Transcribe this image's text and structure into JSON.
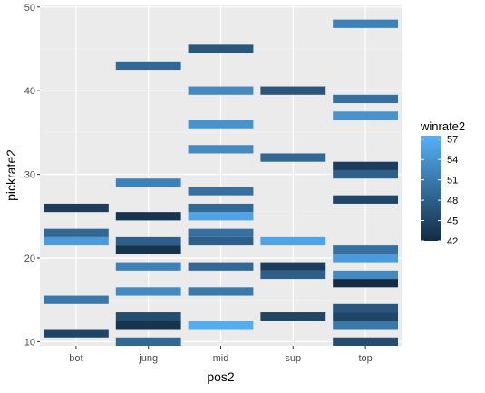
{
  "chart_data": {
    "type": "heatmap",
    "xlabel": "pos2",
    "ylabel": "pickrate2",
    "categories": [
      "bot",
      "jung",
      "mid",
      "sup",
      "top"
    ],
    "yticks": [
      10,
      20,
      30,
      40,
      50
    ],
    "ylim": [
      9.5,
      50.3
    ],
    "grid": true,
    "legend": {
      "title": "winrate2",
      "position": "right",
      "ticks": [
        57,
        54,
        51,
        48,
        45,
        42
      ],
      "range": [
        42,
        57.5
      ],
      "color_low": "#132B43",
      "color_high": "#56B1F7"
    },
    "cells": [
      {
        "x": "bot",
        "y": 11,
        "value": 45
      },
      {
        "x": "bot",
        "y": 15,
        "value": 51
      },
      {
        "x": "bot",
        "y": 22,
        "value": 55
      },
      {
        "x": "bot",
        "y": 23,
        "value": 49
      },
      {
        "x": "bot",
        "y": 26,
        "value": 44
      },
      {
        "x": "jung",
        "y": 10,
        "value": 49
      },
      {
        "x": "jung",
        "y": 12,
        "value": 43
      },
      {
        "x": "jung",
        "y": 13,
        "value": 46
      },
      {
        "x": "jung",
        "y": 16,
        "value": 53
      },
      {
        "x": "jung",
        "y": 19,
        "value": 52
      },
      {
        "x": "jung",
        "y": 21,
        "value": 43
      },
      {
        "x": "jung",
        "y": 22,
        "value": 48
      },
      {
        "x": "jung",
        "y": 25,
        "value": 43
      },
      {
        "x": "jung",
        "y": 29,
        "value": 52
      },
      {
        "x": "jung",
        "y": 43,
        "value": 49
      },
      {
        "x": "mid",
        "y": 12,
        "value": 57
      },
      {
        "x": "mid",
        "y": 16,
        "value": 51
      },
      {
        "x": "mid",
        "y": 19,
        "value": 49
      },
      {
        "x": "mid",
        "y": 22,
        "value": 48
      },
      {
        "x": "mid",
        "y": 23,
        "value": 50
      },
      {
        "x": "mid",
        "y": 25,
        "value": 56
      },
      {
        "x": "mid",
        "y": 26,
        "value": 49
      },
      {
        "x": "mid",
        "y": 28,
        "value": 50
      },
      {
        "x": "mid",
        "y": 33,
        "value": 53
      },
      {
        "x": "mid",
        "y": 36,
        "value": 54
      },
      {
        "x": "mid",
        "y": 40,
        "value": 53
      },
      {
        "x": "mid",
        "y": 45,
        "value": 47
      },
      {
        "x": "sup",
        "y": 13,
        "value": 45
      },
      {
        "x": "sup",
        "y": 18,
        "value": 48
      },
      {
        "x": "sup",
        "y": 19,
        "value": 44
      },
      {
        "x": "sup",
        "y": 22,
        "value": 56
      },
      {
        "x": "sup",
        "y": 32,
        "value": 49
      },
      {
        "x": "sup",
        "y": 40,
        "value": 47
      },
      {
        "x": "top",
        "y": 10,
        "value": 46
      },
      {
        "x": "top",
        "y": 12,
        "value": 51
      },
      {
        "x": "top",
        "y": 13,
        "value": 45
      },
      {
        "x": "top",
        "y": 14,
        "value": 47
      },
      {
        "x": "top",
        "y": 17,
        "value": 42
      },
      {
        "x": "top",
        "y": 18,
        "value": 53
      },
      {
        "x": "top",
        "y": 20,
        "value": 55
      },
      {
        "x": "top",
        "y": 21,
        "value": 50
      },
      {
        "x": "top",
        "y": 27,
        "value": 45
      },
      {
        "x": "top",
        "y": 30,
        "value": 48
      },
      {
        "x": "top",
        "y": 31,
        "value": 44
      },
      {
        "x": "top",
        "y": 37,
        "value": 54
      },
      {
        "x": "top",
        "y": 39,
        "value": 50
      },
      {
        "x": "top",
        "y": 48,
        "value": 52
      }
    ]
  }
}
